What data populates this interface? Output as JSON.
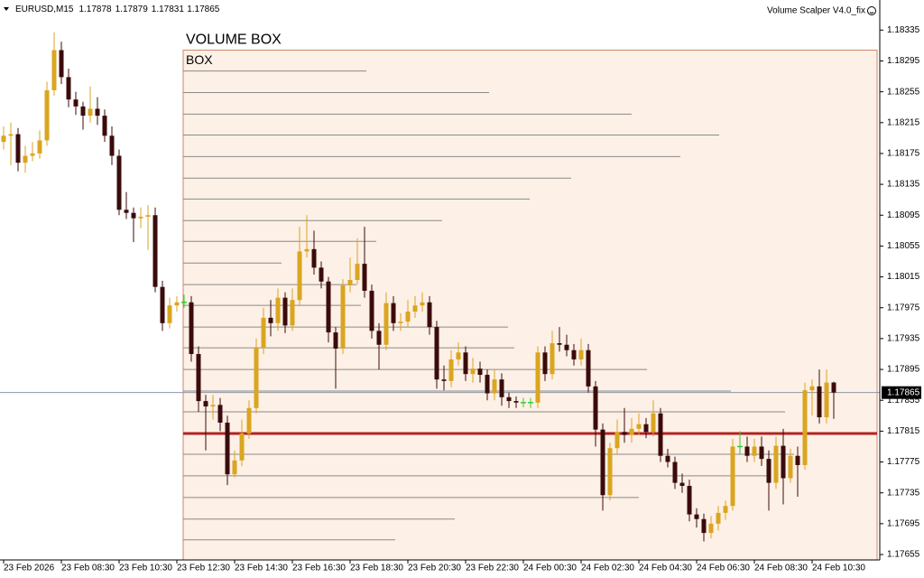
{
  "chart_data": {
    "type": "candlestick",
    "symbol": "EURUSD,M15",
    "indicator": "Volume Scalper V4.0_fix",
    "categories": [
      "23 Feb 2026",
      null,
      null,
      null,
      null,
      null,
      null,
      null,
      "23 Feb 08:30",
      null,
      null,
      null,
      null,
      null,
      null,
      null,
      "23 Feb 10:30",
      null,
      null,
      null,
      null,
      null,
      null,
      null,
      "23 Feb 12:30",
      null,
      null,
      null,
      null,
      null,
      null,
      null,
      "23 Feb 14:30",
      null,
      null,
      null,
      null,
      null,
      null,
      null,
      "23 Feb 16:30",
      null,
      null,
      null,
      null,
      null,
      null,
      null,
      "23 Feb 18:30",
      null,
      null,
      null,
      null,
      null,
      null,
      null,
      "23 Feb 20:30",
      null,
      null,
      null,
      null,
      null,
      null,
      null,
      "23 Feb 22:30",
      null,
      null,
      null,
      null,
      null,
      null,
      null,
      "24 Feb 00:30",
      null,
      null,
      null,
      null,
      null,
      null,
      null,
      "24 Feb 02:30",
      null,
      null,
      null,
      null,
      null,
      null,
      null,
      "24 Feb 04:30",
      null,
      null,
      null,
      null,
      null,
      null,
      null,
      "24 Feb 06:30",
      null,
      null,
      null,
      null,
      null,
      null,
      null,
      "24 Feb 08:30",
      null,
      null,
      null,
      null,
      null,
      null,
      null,
      "24 Feb 10:30",
      null,
      null,
      null
    ],
    "open": [
      1.1819,
      1.18198,
      1.182,
      1.18163,
      1.18172,
      1.18175,
      1.18192,
      1.18257,
      1.18309,
      1.18274,
      1.18245,
      1.18236,
      1.18224,
      1.18233,
      1.18224,
      1.18198,
      1.18172,
      1.18102,
      1.18098,
      1.18091,
      1.18093,
      1.18095,
      1.18002,
      1.17955,
      1.17978,
      1.17982,
      1.17982,
      1.17915,
      1.17854,
      1.17847,
      1.17849,
      1.17826,
      1.17759,
      1.17777,
      1.17812,
      1.17845,
      1.17923,
      1.17962,
      1.17955,
      1.17988,
      1.17952,
      1.17985,
      1.18048,
      1.18051,
      1.18027,
      1.18009,
      1.17943,
      1.17922,
      1.18004,
      1.18011,
      1.18032,
      1.17997,
      1.17945,
      1.17927,
      1.17981,
      1.17955,
      1.17957,
      1.1797,
      1.17978,
      1.17982,
      1.1795,
      1.17882,
      1.1788,
      1.17908,
      1.17917,
      1.17889,
      1.17896,
      1.17888,
      1.17864,
      1.17882,
      1.17859,
      1.17854,
      1.17852,
      1.17852,
      1.17852,
      1.17917,
      1.17889,
      1.17929,
      1.17927,
      1.1792,
      1.17908,
      1.1792,
      1.17873,
      1.17817,
      1.17732,
      1.17793,
      1.17814,
      1.1781,
      1.17818,
      1.17824,
      1.17814,
      1.17838,
      1.17783,
      1.17775,
      1.17748,
      1.17744,
      1.17707,
      1.17701,
      1.17683,
      1.17695,
      1.17709,
      1.17718,
      1.17795,
      1.17795,
      1.17783,
      1.17795,
      1.17779,
      1.17748,
      1.17796,
      1.17754,
      1.17783,
      1.17771,
      1.17868,
      1.17873,
      1.17833,
      1.17878
    ],
    "high": [
      1.1821,
      1.18215,
      1.18208,
      1.18185,
      1.1819,
      1.18205,
      1.18268,
      1.18332,
      1.1832,
      1.18285,
      1.18255,
      1.18242,
      1.18262,
      1.18248,
      1.18232,
      1.1821,
      1.1818,
      1.18125,
      1.18105,
      1.18105,
      1.18108,
      1.18105,
      1.1801,
      1.17988,
      1.1799,
      1.17992,
      1.1799,
      1.17925,
      1.17862,
      1.17862,
      1.17858,
      1.17835,
      1.1779,
      1.1783,
      1.17855,
      1.17935,
      1.17975,
      1.17985,
      1.18,
      1.17995,
      1.18,
      1.1808,
      1.18095,
      1.18075,
      1.18035,
      1.18015,
      1.1795,
      1.18012,
      1.1804,
      1.18065,
      1.1808,
      1.18005,
      1.17955,
      1.17995,
      1.1799,
      1.17968,
      1.17985,
      1.1799,
      1.17995,
      1.1799,
      1.17958,
      1.179,
      1.1792,
      1.1793,
      1.17925,
      1.1791,
      1.17905,
      1.17895,
      1.17895,
      1.1789,
      1.17865,
      1.1786,
      1.17858,
      1.17858,
      1.17925,
      1.17925,
      1.17945,
      1.1795,
      1.1794,
      1.17928,
      1.17935,
      1.17928,
      1.1788,
      1.17825,
      1.178,
      1.1783,
      1.17845,
      1.17832,
      1.17838,
      1.17832,
      1.17855,
      1.17845,
      1.17792,
      1.17782,
      1.1776,
      1.17752,
      1.17715,
      1.17708,
      1.17705,
      1.17718,
      1.17725,
      1.17805,
      1.17815,
      1.17808,
      1.17805,
      1.17808,
      1.1779,
      1.17808,
      1.17818,
      1.17792,
      1.17795,
      1.17878,
      1.17882,
      1.17895,
      1.17895,
      1.17879
    ],
    "low": [
      1.1818,
      1.1816,
      1.18152,
      1.1815,
      1.18165,
      1.18168,
      1.18185,
      1.1825,
      1.18265,
      1.18235,
      1.18225,
      1.18206,
      1.18215,
      1.18212,
      1.1819,
      1.1816,
      1.18095,
      1.1809,
      1.1806,
      1.18078,
      1.1805,
      1.17995,
      1.17945,
      1.17948,
      1.1797,
      1.17975,
      1.17905,
      1.1784,
      1.1779,
      1.1783,
      1.17815,
      1.17745,
      1.17755,
      1.1777,
      1.17805,
      1.17838,
      1.17915,
      1.17938,
      1.17945,
      1.17942,
      1.17945,
      1.17978,
      1.1804,
      1.18018,
      1.18,
      1.1793,
      1.1787,
      1.17915,
      1.17995,
      1.18005,
      1.17988,
      1.17935,
      1.17895,
      1.1792,
      1.17945,
      1.17945,
      1.1795,
      1.17962,
      1.1797,
      1.1794,
      1.1787,
      1.17868,
      1.17872,
      1.179,
      1.1788,
      1.17878,
      1.17878,
      1.17855,
      1.17855,
      1.17848,
      1.17845,
      1.17845,
      1.17846,
      1.17845,
      1.17845,
      1.1788,
      1.17882,
      1.17918,
      1.17912,
      1.179,
      1.179,
      1.17865,
      1.17795,
      1.17712,
      1.17725,
      1.17785,
      1.178,
      1.178,
      1.1781,
      1.17806,
      1.17808,
      1.17775,
      1.17768,
      1.1774,
      1.17735,
      1.17698,
      1.1769,
      1.17672,
      1.17676,
      1.17686,
      1.177,
      1.17712,
      1.17785,
      1.17775,
      1.17775,
      1.1777,
      1.17712,
      1.1774,
      1.1772,
      1.17748,
      1.1773,
      1.17765,
      1.17835,
      1.17825,
      1.17825,
      1.17831
    ],
    "close": [
      1.18198,
      1.182,
      1.18163,
      1.18172,
      1.18175,
      1.18192,
      1.18257,
      1.18309,
      1.18274,
      1.18245,
      1.18236,
      1.18224,
      1.18233,
      1.18224,
      1.18198,
      1.18172,
      1.18102,
      1.18098,
      1.18091,
      1.18093,
      1.18095,
      1.18002,
      1.17955,
      1.17978,
      1.17982,
      1.17982,
      1.17915,
      1.17854,
      1.17847,
      1.17849,
      1.17826,
      1.17759,
      1.17777,
      1.17812,
      1.17845,
      1.17923,
      1.17962,
      1.17955,
      1.17988,
      1.17952,
      1.17985,
      1.18048,
      1.18051,
      1.18027,
      1.18009,
      1.17943,
      1.17922,
      1.18004,
      1.18011,
      1.18032,
      1.17997,
      1.17945,
      1.17927,
      1.17981,
      1.17955,
      1.17957,
      1.1797,
      1.17978,
      1.17982,
      1.1795,
      1.17882,
      1.1788,
      1.17908,
      1.17917,
      1.17889,
      1.17896,
      1.17888,
      1.17864,
      1.17882,
      1.17859,
      1.17854,
      1.17852,
      1.17852,
      1.17852,
      1.17917,
      1.17889,
      1.17929,
      1.17927,
      1.1792,
      1.17908,
      1.1792,
      1.17873,
      1.17817,
      1.17732,
      1.17793,
      1.17814,
      1.1781,
      1.17818,
      1.17824,
      1.17814,
      1.17838,
      1.17783,
      1.17775,
      1.17748,
      1.17744,
      1.17707,
      1.17701,
      1.17683,
      1.17695,
      1.17709,
      1.17718,
      1.17795,
      1.17795,
      1.17783,
      1.17795,
      1.17779,
      1.17748,
      1.17796,
      1.17754,
      1.17783,
      1.17771,
      1.17868,
      1.17873,
      1.17833,
      1.17878,
      1.17865
    ],
    "up_color": "#daa520",
    "down_color": "#3b0b0b",
    "doji_color": "#32cd32",
    "ylim": [
      1.17648,
      1.18374
    ],
    "yticks": [
      1.18335,
      1.18295,
      1.18255,
      1.18215,
      1.18175,
      1.18135,
      1.18095,
      1.18055,
      1.18015,
      1.17975,
      1.17935,
      1.17895,
      1.17855,
      1.17815,
      1.17775,
      1.17735,
      1.17695,
      1.17655
    ],
    "box": {
      "title": "VOLUME BOX",
      "label": "BOX",
      "start": 25,
      "high": 1.18309,
      "low": 1.17648,
      "fill": "#fdf0e6",
      "border": "#c98a6a",
      "title_color": "#e8201c",
      "label_color": "#f2e600"
    },
    "profile": {
      "levels": [
        1.18282,
        1.18254,
        1.18226,
        1.18199,
        1.18171,
        1.18143,
        1.18116,
        1.18088,
        1.18061,
        1.18033,
        1.18005,
        1.17978,
        1.1795,
        1.17923,
        1.17895,
        1.17867,
        1.1784,
        1.17812,
        1.17785,
        1.17757,
        1.17729,
        1.17701,
        1.17674
      ],
      "volumes": [
        203,
        339,
        497,
        594,
        551,
        430,
        384,
        287,
        214,
        109,
        192,
        197,
        360,
        367,
        514,
        607,
        667,
        769,
        677,
        647,
        505,
        301,
        235
      ],
      "color": "#8a8a8a",
      "poc_color": "#b22222"
    }
  }
}
